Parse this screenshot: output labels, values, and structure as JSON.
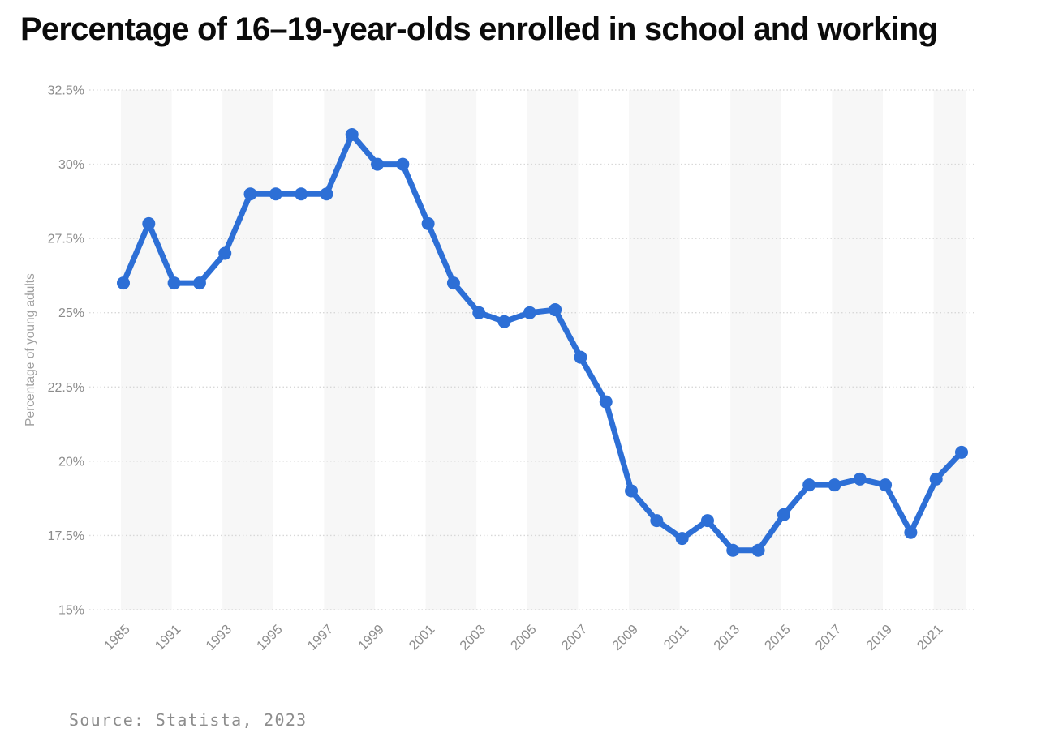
{
  "title": "Percentage of 16–19-year-olds enrolled in school and working",
  "source": "Source: Statista, 2023",
  "chart_data": {
    "type": "line",
    "title": "Percentage of 16–19-year-olds enrolled in school and working",
    "xlabel": "",
    "ylabel": "Percentage of young adults",
    "x": [
      1985,
      1990,
      1991,
      1992,
      1993,
      1994,
      1995,
      1996,
      1997,
      1998,
      1999,
      2000,
      2001,
      2002,
      2003,
      2004,
      2005,
      2006,
      2007,
      2008,
      2009,
      2010,
      2011,
      2012,
      2013,
      2014,
      2015,
      2016,
      2017,
      2018,
      2019,
      2020,
      2021,
      2022
    ],
    "values": [
      26,
      28,
      26,
      26,
      27,
      29,
      29,
      29,
      29,
      31,
      30,
      30,
      28,
      26,
      25,
      24.7,
      25,
      25.1,
      23.5,
      22,
      19,
      18,
      17.4,
      18,
      17,
      17,
      18.2,
      19.2,
      19.2,
      19.4,
      19.2,
      17.6,
      19.4,
      20.3
    ],
    "x_tick_labels": [
      "1985",
      "1991",
      "1993",
      "1995",
      "1997",
      "1999",
      "2001",
      "2003",
      "2005",
      "2007",
      "2009",
      "2011",
      "2013",
      "2015",
      "2017",
      "2019",
      "2021"
    ],
    "y_tick_labels": [
      "32.5%",
      "30%",
      "27.5%",
      "25%",
      "22.5%",
      "20%",
      "17.5%",
      "15%"
    ],
    "y_tick_values": [
      32.5,
      30,
      27.5,
      25,
      22.5,
      20,
      17.5,
      15
    ],
    "ylim": [
      15,
      32.5
    ],
    "grid": "horizontal-dotted",
    "legend": "none",
    "background_stripes": "vertical-alternating",
    "line_color": "#2D6FD6",
    "stripe_color": "#f7f7f7",
    "grid_color": "#d8d8d8",
    "tick_color": "#8c8c8c",
    "axis_title_color": "#a0a0a0",
    "source_color": "#8d8d8d"
  }
}
